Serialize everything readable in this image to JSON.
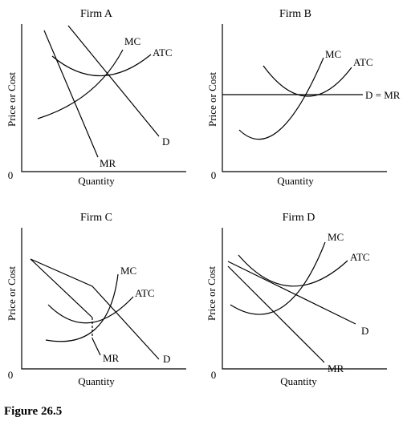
{
  "caption": "Figure 26.5",
  "panels": [
    {
      "id": "firm-a",
      "title": "Firm A",
      "ylabel": "Price or Cost",
      "xlabel": "Quantity",
      "origin_label": "0",
      "curves": [
        {
          "id": "mc",
          "label": "MC"
        },
        {
          "id": "atc",
          "label": "ATC"
        },
        {
          "id": "demand",
          "label": "D"
        },
        {
          "id": "mr",
          "label": "MR"
        }
      ]
    },
    {
      "id": "firm-b",
      "title": "Firm B",
      "ylabel": "Price or Cost",
      "xlabel": "Quantity",
      "origin_label": "0",
      "curves": [
        {
          "id": "mc",
          "label": "MC"
        },
        {
          "id": "atc",
          "label": "ATC"
        },
        {
          "id": "demand",
          "label": "D = MR"
        }
      ]
    },
    {
      "id": "firm-c",
      "title": "Firm C",
      "ylabel": "Price or Cost",
      "xlabel": "Quantity",
      "origin_label": "0",
      "curves": [
        {
          "id": "mc",
          "label": "MC"
        },
        {
          "id": "atc",
          "label": "ATC"
        },
        {
          "id": "demand",
          "label": "D"
        },
        {
          "id": "mr",
          "label": "MR"
        }
      ]
    },
    {
      "id": "firm-d",
      "title": "Firm D",
      "ylabel": "Price or Cost",
      "xlabel": "Quantity",
      "origin_label": "0",
      "curves": [
        {
          "id": "mc",
          "label": "MC"
        },
        {
          "id": "atc",
          "label": "ATC"
        },
        {
          "id": "demand",
          "label": "D"
        },
        {
          "id": "mr",
          "label": "MR"
        }
      ]
    }
  ]
}
